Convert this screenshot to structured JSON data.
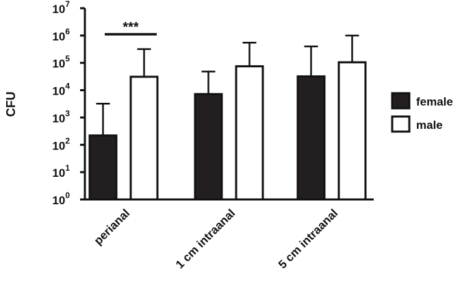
{
  "chart_data": {
    "type": "bar",
    "ylabel": "CFU",
    "xlabel": "",
    "title": "",
    "yscale": "log",
    "ylim": [
      1,
      10000000
    ],
    "ytick_base": "10",
    "yticks": [
      {
        "value": 1,
        "exp": "0"
      },
      {
        "value": 10,
        "exp": "1"
      },
      {
        "value": 100,
        "exp": "2"
      },
      {
        "value": 1000,
        "exp": "3"
      },
      {
        "value": 10000,
        "exp": "4"
      },
      {
        "value": 100000,
        "exp": "5"
      },
      {
        "value": 1000000,
        "exp": "6"
      },
      {
        "value": 10000000,
        "exp": "7"
      }
    ],
    "categories": [
      "perianal",
      "1 cm intraanal",
      "5 cm intraanal"
    ],
    "series": [
      {
        "name": "female",
        "values": [
          220,
          7200,
          32000
        ],
        "error_upper": [
          3200,
          48000,
          400000
        ],
        "fill": "#231f20"
      },
      {
        "name": "male",
        "values": [
          31000,
          75000,
          105000
        ],
        "error_upper": [
          320000,
          550000,
          1000000
        ],
        "fill": "#ffffff"
      }
    ],
    "annotations": [
      {
        "text": "***",
        "between_category": "perianal"
      }
    ],
    "legend": {
      "position": "right"
    },
    "grid": false
  }
}
